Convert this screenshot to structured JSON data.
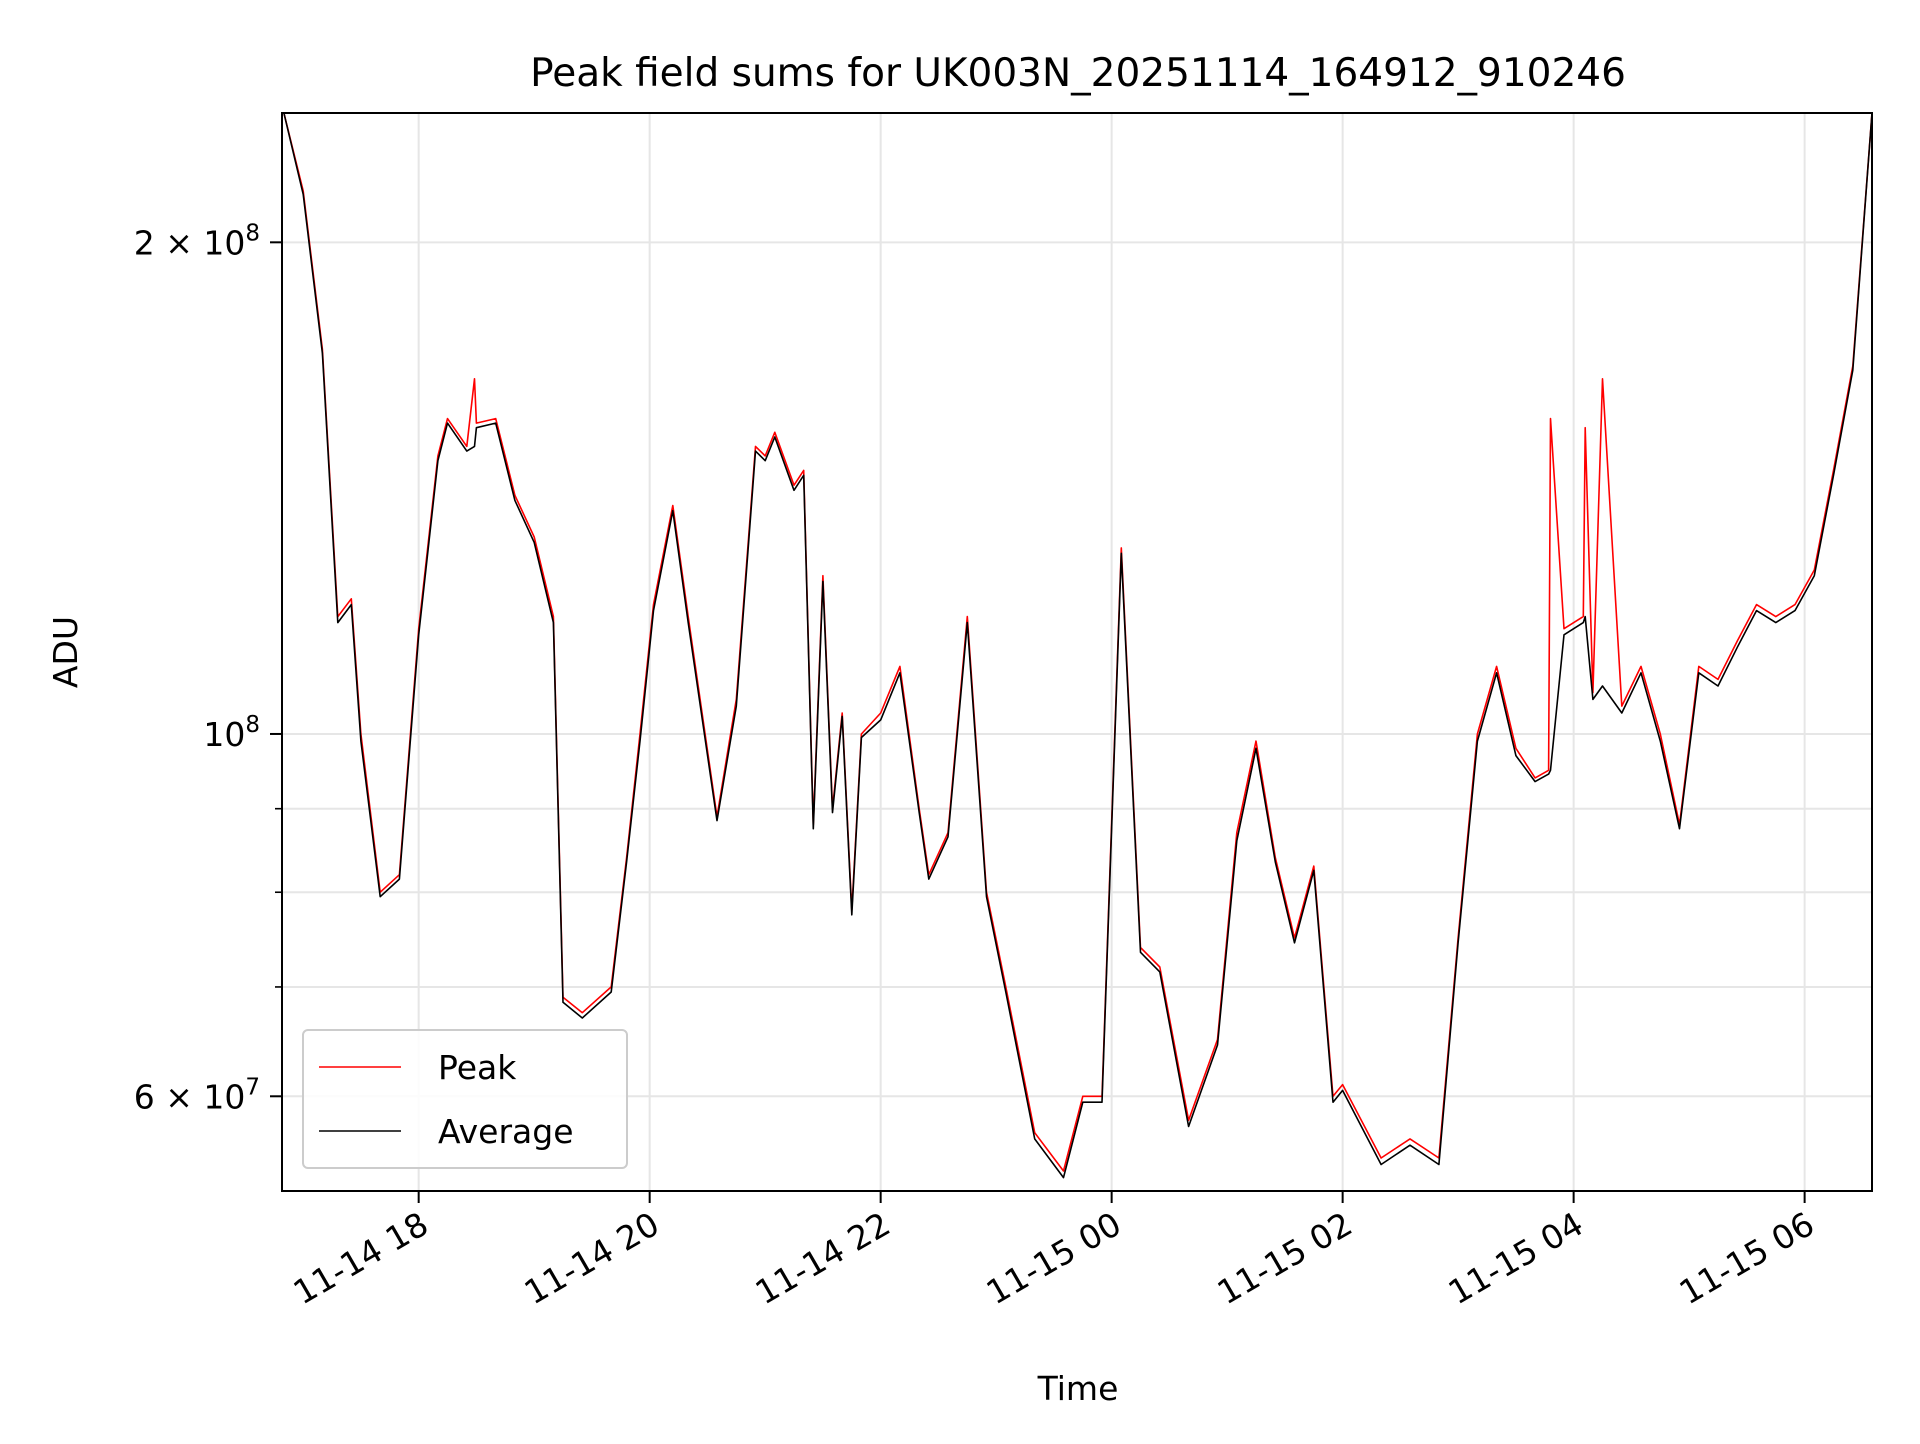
{
  "chart_data": {
    "type": "line",
    "title": "Peak field sums for UK003N_20251114_164912_910246",
    "xlabel": "Time",
    "ylabel": "ADU",
    "y_scale": "log",
    "ylim": [
      52500000,
      240000000
    ],
    "xlim": [
      "2025-11-14 16:49",
      "2025-11-15 06:35"
    ],
    "grid": true,
    "legend_position": "lower-left",
    "x_ticks": [
      {
        "value": "2025-11-14 18:00",
        "label": "11-14 18"
      },
      {
        "value": "2025-11-14 20:00",
        "label": "11-14 20"
      },
      {
        "value": "2025-11-14 22:00",
        "label": "11-14 22"
      },
      {
        "value": "2025-11-15 00:00",
        "label": "11-15 00"
      },
      {
        "value": "2025-11-15 02:00",
        "label": "11-15 02"
      },
      {
        "value": "2025-11-15 04:00",
        "label": "11-15 04"
      },
      {
        "value": "2025-11-15 06:00",
        "label": "11-15 06"
      }
    ],
    "y_ticks": [
      {
        "value": 60000000,
        "label": "6 × 10",
        "exp": "7"
      },
      {
        "value": 100000000,
        "label": "10",
        "exp": "8"
      },
      {
        "value": 200000000,
        "label": "2 × 10",
        "exp": "8"
      }
    ],
    "y_minor_ticks": [
      70000000,
      80000000,
      90000000
    ],
    "series": [
      {
        "name": "Peak",
        "color": "#ff0000",
        "x": [
          "2025-11-14 16:50",
          "2025-11-14 17:00",
          "2025-11-14 17:10",
          "2025-11-14 17:18",
          "2025-11-14 17:25",
          "2025-11-14 17:30",
          "2025-11-14 17:40",
          "2025-11-14 17:50",
          "2025-11-14 18:00",
          "2025-11-14 18:10",
          "2025-11-14 18:15",
          "2025-11-14 18:25",
          "2025-11-14 18:29",
          "2025-11-14 18:30",
          "2025-11-14 18:40",
          "2025-11-14 18:50",
          "2025-11-14 19:00",
          "2025-11-14 19:10",
          "2025-11-14 19:15",
          "2025-11-14 19:25",
          "2025-11-14 19:40",
          "2025-11-14 19:48",
          "2025-11-14 19:55",
          "2025-11-14 20:02",
          "2025-11-14 20:12",
          "2025-11-14 20:20",
          "2025-11-14 20:35",
          "2025-11-14 20:45",
          "2025-11-14 20:55",
          "2025-11-14 21:00",
          "2025-11-14 21:05",
          "2025-11-14 21:15",
          "2025-11-14 21:20",
          "2025-11-14 21:25",
          "2025-11-14 21:30",
          "2025-11-14 21:35",
          "2025-11-14 21:40",
          "2025-11-14 21:45",
          "2025-11-14 21:50",
          "2025-11-14 22:00",
          "2025-11-14 22:10",
          "2025-11-14 22:20",
          "2025-11-14 22:25",
          "2025-11-14 22:35",
          "2025-11-14 22:45",
          "2025-11-14 22:55",
          "2025-11-14 23:05",
          "2025-11-14 23:20",
          "2025-11-14 23:35",
          "2025-11-14 23:45",
          "2025-11-14 23:55",
          "2025-11-15 00:05",
          "2025-11-15 00:15",
          "2025-11-15 00:25",
          "2025-11-15 00:40",
          "2025-11-15 00:55",
          "2025-11-15 01:05",
          "2025-11-15 01:15",
          "2025-11-15 01:25",
          "2025-11-15 01:35",
          "2025-11-15 01:45",
          "2025-11-15 01:55",
          "2025-11-15 02:00",
          "2025-11-15 02:20",
          "2025-11-15 02:35",
          "2025-11-15 02:50",
          "2025-11-15 03:00",
          "2025-11-15 03:10",
          "2025-11-15 03:20",
          "2025-11-15 03:30",
          "2025-11-15 03:40",
          "2025-11-15 03:47",
          "2025-11-15 03:48",
          "2025-11-15 03:55",
          "2025-11-15 04:05",
          "2025-11-15 04:06",
          "2025-11-15 04:10",
          "2025-11-15 04:15",
          "2025-11-15 04:25",
          "2025-11-15 04:35",
          "2025-11-15 04:45",
          "2025-11-15 04:55",
          "2025-11-15 05:05",
          "2025-11-15 05:15",
          "2025-11-15 05:25",
          "2025-11-15 05:35",
          "2025-11-15 05:45",
          "2025-11-15 05:55",
          "2025-11-15 06:05",
          "2025-11-15 06:15",
          "2025-11-15 06:25",
          "2025-11-15 06:35"
        ],
        "y": [
          240000000,
          215000000,
          172000000,
          118000000,
          121000000,
          100000000,
          80000000,
          82000000,
          116000000,
          148000000,
          156000000,
          150000000,
          165000000,
          155000000,
          156000000,
          140000000,
          132000000,
          118000000,
          69000000,
          67500000,
          70000000,
          84000000,
          100000000,
          120000000,
          138000000,
          118000000,
          89000000,
          105000000,
          150000000,
          148000000,
          153000000,
          142000000,
          145000000,
          88000000,
          125000000,
          90000000,
          103000000,
          78000000,
          100000000,
          103000000,
          110000000,
          90000000,
          82000000,
          87000000,
          118000000,
          80000000,
          70000000,
          57000000,
          54000000,
          60000000,
          60000000,
          130000000,
          74000000,
          72000000,
          58000000,
          65000000,
          87000000,
          99000000,
          84000000,
          75000000,
          83000000,
          60000000,
          61000000,
          55000000,
          56500000,
          55000000,
          75000000,
          100000000,
          110000000,
          98000000,
          94000000,
          95000000,
          156000000,
          116000000,
          118000000,
          154000000,
          106000000,
          165000000,
          104000000,
          110000000,
          100000000,
          88000000,
          110000000,
          108000000,
          114000000,
          120000000,
          118000000,
          120000000,
          126000000,
          145000000,
          168000000,
          240000000
        ]
      },
      {
        "name": "Average",
        "color": "#000000",
        "x": [
          "2025-11-14 16:50",
          "2025-11-14 17:00",
          "2025-11-14 17:10",
          "2025-11-14 17:18",
          "2025-11-14 17:25",
          "2025-11-14 17:30",
          "2025-11-14 17:40",
          "2025-11-14 17:50",
          "2025-11-14 18:00",
          "2025-11-14 18:10",
          "2025-11-14 18:15",
          "2025-11-14 18:25",
          "2025-11-14 18:29",
          "2025-11-14 18:30",
          "2025-11-14 18:40",
          "2025-11-14 18:50",
          "2025-11-14 19:00",
          "2025-11-14 19:10",
          "2025-11-14 19:15",
          "2025-11-14 19:25",
          "2025-11-14 19:40",
          "2025-11-14 19:48",
          "2025-11-14 19:55",
          "2025-11-14 20:02",
          "2025-11-14 20:12",
          "2025-11-14 20:20",
          "2025-11-14 20:35",
          "2025-11-14 20:45",
          "2025-11-14 20:55",
          "2025-11-14 21:00",
          "2025-11-14 21:05",
          "2025-11-14 21:15",
          "2025-11-14 21:20",
          "2025-11-14 21:25",
          "2025-11-14 21:30",
          "2025-11-14 21:35",
          "2025-11-14 21:40",
          "2025-11-14 21:45",
          "2025-11-14 21:50",
          "2025-11-14 22:00",
          "2025-11-14 22:10",
          "2025-11-14 22:20",
          "2025-11-14 22:25",
          "2025-11-14 22:35",
          "2025-11-14 22:45",
          "2025-11-14 22:55",
          "2025-11-14 23:05",
          "2025-11-14 23:20",
          "2025-11-14 23:35",
          "2025-11-14 23:45",
          "2025-11-14 23:55",
          "2025-11-15 00:05",
          "2025-11-15 00:15",
          "2025-11-15 00:25",
          "2025-11-15 00:40",
          "2025-11-15 00:55",
          "2025-11-15 01:05",
          "2025-11-15 01:15",
          "2025-11-15 01:25",
          "2025-11-15 01:35",
          "2025-11-15 01:45",
          "2025-11-15 01:55",
          "2025-11-15 02:00",
          "2025-11-15 02:20",
          "2025-11-15 02:35",
          "2025-11-15 02:50",
          "2025-11-15 03:00",
          "2025-11-15 03:10",
          "2025-11-15 03:20",
          "2025-11-15 03:30",
          "2025-11-15 03:40",
          "2025-11-15 03:47",
          "2025-11-15 03:48",
          "2025-11-15 03:55",
          "2025-11-15 04:05",
          "2025-11-15 04:06",
          "2025-11-15 04:10",
          "2025-11-15 04:15",
          "2025-11-15 04:25",
          "2025-11-15 04:35",
          "2025-11-15 04:45",
          "2025-11-15 04:55",
          "2025-11-15 05:05",
          "2025-11-15 05:15",
          "2025-11-15 05:25",
          "2025-11-15 05:35",
          "2025-11-15 05:45",
          "2025-11-15 05:55",
          "2025-11-15 06:05",
          "2025-11-15 06:15",
          "2025-11-15 06:25",
          "2025-11-15 06:35"
        ],
        "y": [
          240000000,
          214000000,
          171000000,
          117000000,
          120000000,
          99000000,
          79500000,
          81500000,
          115000000,
          147000000,
          155000000,
          149000000,
          150000000,
          154000000,
          155000000,
          139000000,
          131000000,
          117000000,
          68500000,
          67000000,
          69500000,
          83500000,
          99000000,
          119000000,
          137000000,
          117000000,
          88500000,
          104000000,
          149000000,
          147000000,
          152000000,
          141000000,
          144000000,
          87500000,
          124000000,
          89500000,
          102500000,
          77500000,
          99500000,
          102000000,
          109000000,
          89500000,
          81500000,
          86500000,
          117000000,
          79500000,
          69500000,
          56500000,
          53500000,
          59500000,
          59500000,
          129000000,
          73500000,
          71500000,
          57500000,
          64500000,
          86000000,
          98000000,
          83500000,
          74500000,
          82500000,
          59500000,
          60500000,
          54500000,
          56000000,
          54500000,
          74500000,
          99000000,
          109000000,
          97000000,
          93500000,
          94500000,
          95000000,
          115000000,
          117000000,
          118000000,
          105000000,
          107000000,
          103000000,
          109000000,
          99000000,
          87500000,
          109000000,
          107000000,
          113000000,
          119000000,
          117000000,
          119000000,
          125000000,
          144000000,
          167000000,
          240000000
        ]
      }
    ]
  }
}
